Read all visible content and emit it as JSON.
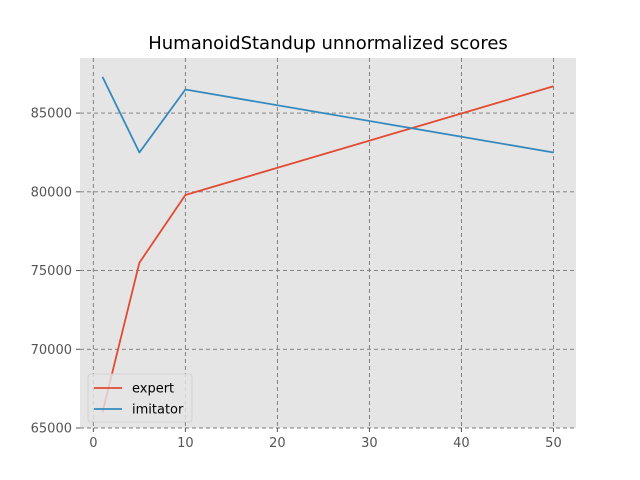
{
  "chart_data": {
    "type": "line",
    "title": "HumanoidStandup unnormalized scores",
    "xlabel": "",
    "ylabel": "",
    "xlim": [
      -1.45,
      52.45
    ],
    "ylim": [
      65000,
      88500
    ],
    "xticks": [
      0,
      10,
      20,
      30,
      40,
      50
    ],
    "yticks": [
      65000,
      70000,
      75000,
      80000,
      85000
    ],
    "grid": true,
    "legend_position": "lower-left",
    "series": [
      {
        "name": "expert",
        "color": "#E24A33",
        "x": [
          1,
          5,
          10,
          50
        ],
        "y": [
          66000,
          75500,
          79800,
          86700
        ]
      },
      {
        "name": "imitator",
        "color": "#348ABD",
        "x": [
          1,
          5,
          10,
          50
        ],
        "y": [
          87300,
          82500,
          86500,
          82500
        ]
      }
    ]
  }
}
